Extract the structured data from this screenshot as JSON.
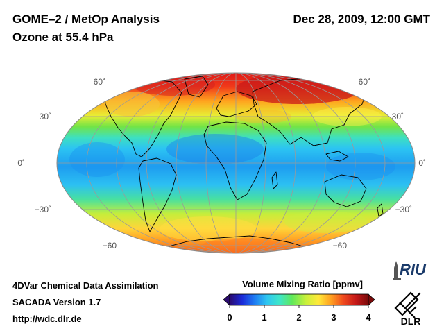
{
  "header": {
    "title": "GOME–2 / MetOp Analysis",
    "subtitle": "Ozone at 55.4 hPa",
    "datetime": "Dec 28, 2009, 12:00 GMT"
  },
  "map": {
    "projection": "Hammer-Aitoff (global, equal-area)",
    "lat_labels_left": [
      "60˚",
      "30˚",
      "0˚",
      "−30˚",
      "−60"
    ],
    "lat_labels_right": [
      "60˚",
      "30˚",
      "0˚",
      "−30˚",
      "−60"
    ],
    "ocean_fill": "color-coded ozone field (blue tropics, yellow-red high latitudes)",
    "coastline_color": "#000000",
    "grid_color": "#9a9a9a"
  },
  "colorbar": {
    "title": "Volume Mixing Ratio [ppmv]",
    "ticks": [
      "0",
      "1",
      "2",
      "3",
      "4"
    ],
    "min": 0,
    "max": 4,
    "colors": [
      "#2a0a6e",
      "#1a2ad8",
      "#1e7cf2",
      "#2ec6f0",
      "#3ee6c8",
      "#5fe85a",
      "#c8f03a",
      "#ffe93a",
      "#ffa020",
      "#f04a1e",
      "#c41818",
      "#7a0a0a"
    ]
  },
  "footer": {
    "line1": "4DVar Chemical Data Assimilation",
    "line2": "SACADA Version 1.7",
    "line3": "http://wdc.dlr.de"
  },
  "logos": {
    "riu": "RIU",
    "dlr": "DLR"
  }
}
